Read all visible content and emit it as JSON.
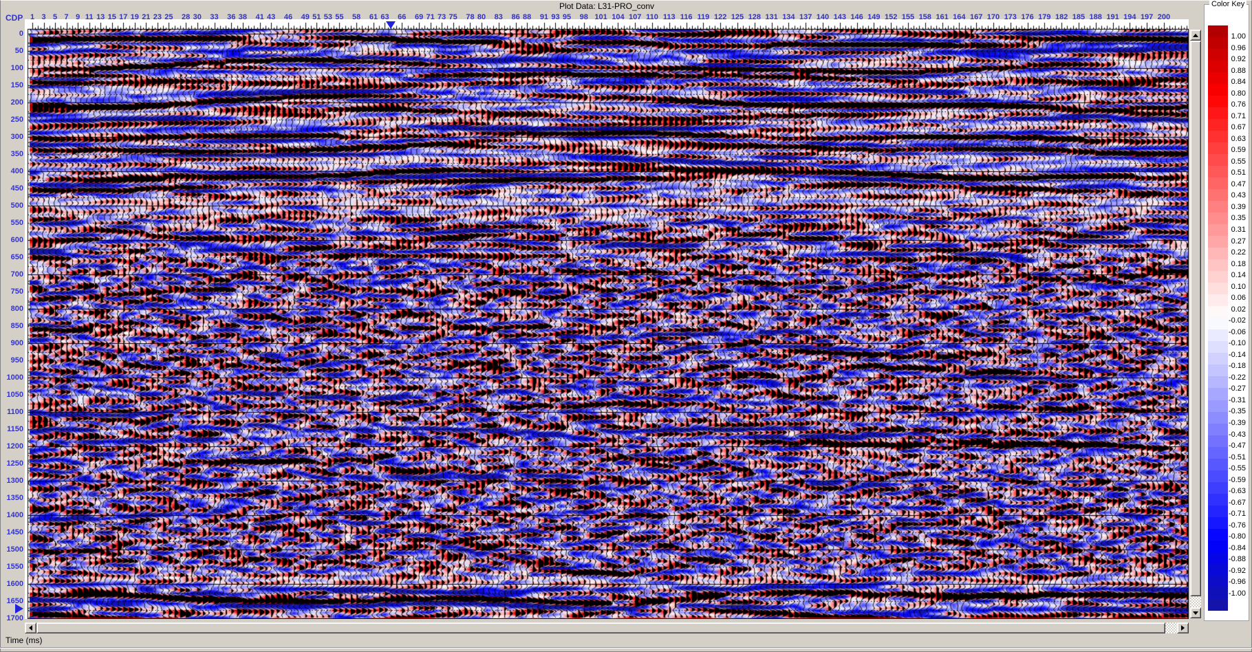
{
  "window": {
    "title": "Plot Data: L31-PRO_conv"
  },
  "axes": {
    "x_title": "CDP",
    "y_title": "Time (ms)"
  },
  "color_key": {
    "title": "Color Key",
    "values": [
      "1.00",
      "0.96",
      "0.92",
      "0.88",
      "0.84",
      "0.80",
      "0.76",
      "0.71",
      "0.67",
      "0.63",
      "0.59",
      "0.55",
      "0.51",
      "0.47",
      "0.43",
      "0.39",
      "0.35",
      "0.31",
      "0.27",
      "0.22",
      "0.18",
      "0.14",
      "0.10",
      "0.06",
      "0.02",
      "-0.02",
      "-0.06",
      "-0.10",
      "-0.14",
      "-0.18",
      "-0.22",
      "-0.27",
      "-0.31",
      "-0.35",
      "-0.39",
      "-0.43",
      "-0.47",
      "-0.51",
      "-0.55",
      "-0.59",
      "-0.63",
      "-0.67",
      "-0.71",
      "-0.76",
      "-0.80",
      "-0.84",
      "-0.88",
      "-0.92",
      "-0.96",
      "-1.00"
    ]
  },
  "markers": {
    "cdp_marker_position": 64,
    "time_marker_position_ms": 1672
  },
  "colors": {
    "axis_label": "#3333cc",
    "marker": "#2222dd",
    "chrome_gray": "#d4d0c8",
    "positive_extreme": "#b20000",
    "negative_extreme": "#1414aa",
    "plot_background": "#ffffff"
  },
  "chart_data": {
    "type": "heatmap",
    "title": "Plot Data: L31-PRO_conv",
    "xlabel": "CDP",
    "ylabel": "Time (ms)",
    "x_range": [
      1,
      200
    ],
    "y_range": [
      0,
      1700
    ],
    "cdp_labels": [
      1,
      3,
      5,
      7,
      9,
      11,
      13,
      15,
      17,
      19,
      21,
      23,
      25,
      28,
      30,
      33,
      36,
      38,
      41,
      43,
      46,
      49,
      51,
      53,
      55,
      58,
      61,
      63,
      66,
      69,
      71,
      73,
      75,
      78,
      80,
      83,
      86,
      88,
      91,
      93,
      95,
      98,
      101,
      104,
      107,
      110,
      113,
      116,
      119,
      122,
      125,
      128,
      131,
      134,
      137,
      140,
      143,
      146,
      149,
      152,
      155,
      158,
      161,
      164,
      167,
      170,
      173,
      176,
      179,
      182,
      185,
      188,
      191,
      194,
      197,
      200
    ],
    "time_labels_ms": [
      0,
      50,
      100,
      150,
      200,
      250,
      300,
      350,
      400,
      450,
      500,
      550,
      600,
      650,
      700,
      750,
      800,
      850,
      900,
      950,
      1000,
      1050,
      1100,
      1150,
      1200,
      1250,
      1300,
      1350,
      1400,
      1450,
      1500,
      1550,
      1600,
      1650,
      1700
    ],
    "grid": "dotted timing line every 25 ms, solid black line every 100 ms",
    "legend_position": "right",
    "amplitude_scale": [
      -1.0,
      1.0
    ],
    "display_style": "variable-density red/white/blue with overlaid black variable-area wiggle traces"
  }
}
